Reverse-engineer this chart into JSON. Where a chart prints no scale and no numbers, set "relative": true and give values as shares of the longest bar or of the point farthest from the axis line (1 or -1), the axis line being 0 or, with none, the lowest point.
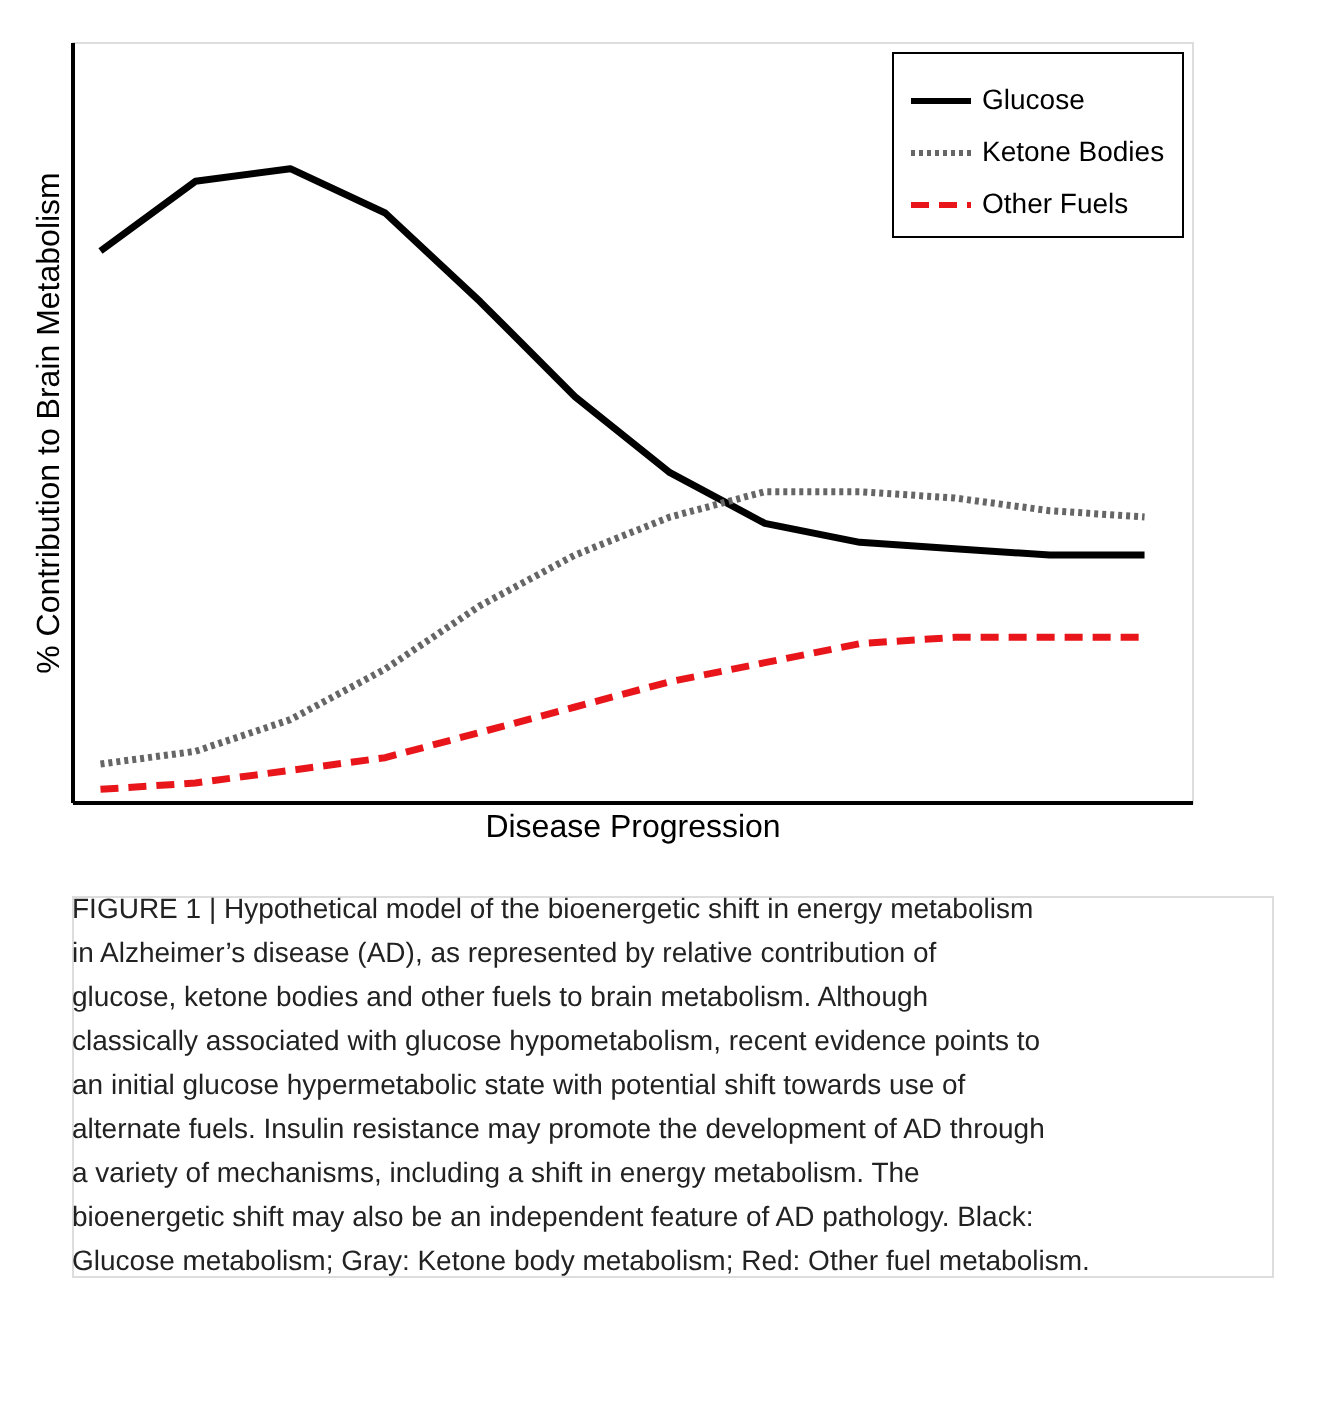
{
  "chart_data": {
    "type": "line",
    "relative": true,
    "xlabel": "Disease Progression",
    "ylabel": "% Contribution to Brain Metabolism",
    "categories": [
      null,
      null,
      null,
      null,
      null,
      null,
      null,
      null,
      null,
      null,
      null,
      null
    ],
    "series": [
      {
        "name": "Glucose",
        "color": "#000000",
        "line_style": "solid",
        "values": [
          0.87,
          0.98,
          1.0,
          0.93,
          0.79,
          0.64,
          0.52,
          0.44,
          0.41,
          0.4,
          0.39,
          0.39
        ]
      },
      {
        "name": "Ketone Bodies",
        "color": "#666666",
        "line_style": "dotted",
        "values": [
          0.06,
          0.08,
          0.13,
          0.21,
          0.31,
          0.39,
          0.45,
          0.49,
          0.49,
          0.48,
          0.46,
          0.45
        ]
      },
      {
        "name": "Other Fuels",
        "color": "#e8161b",
        "line_style": "dashed",
        "values": [
          0.02,
          0.03,
          0.05,
          0.07,
          0.11,
          0.15,
          0.19,
          0.22,
          0.25,
          0.26,
          0.26,
          0.26
        ]
      }
    ],
    "legend": "top right",
    "grid": false,
    "marker": "none",
    "annotations": [
      "FIGURE 1 | Hypothetical model of the bioenergetic shift in energy metabolism in Alzheimer’s disease (AD), as represented by relative contribution of glucose, ketone bodies and other fuels to brain metabolism. Although classically associated with glucose hypometabolism, recent evidence points to an initial glucose hypermetabolic state with potential shift towards use of alternate fuels. Insulin resistance may promote the development of AD through a variety of mechanisms, including a shift in energy metabolism. The bioenergetic shift may also be an independent feature of AD pathology. Black: Glucose metabolism; Gray: Ketone body metabolism; Red: Other fuel metabolism."
    ]
  }
}
